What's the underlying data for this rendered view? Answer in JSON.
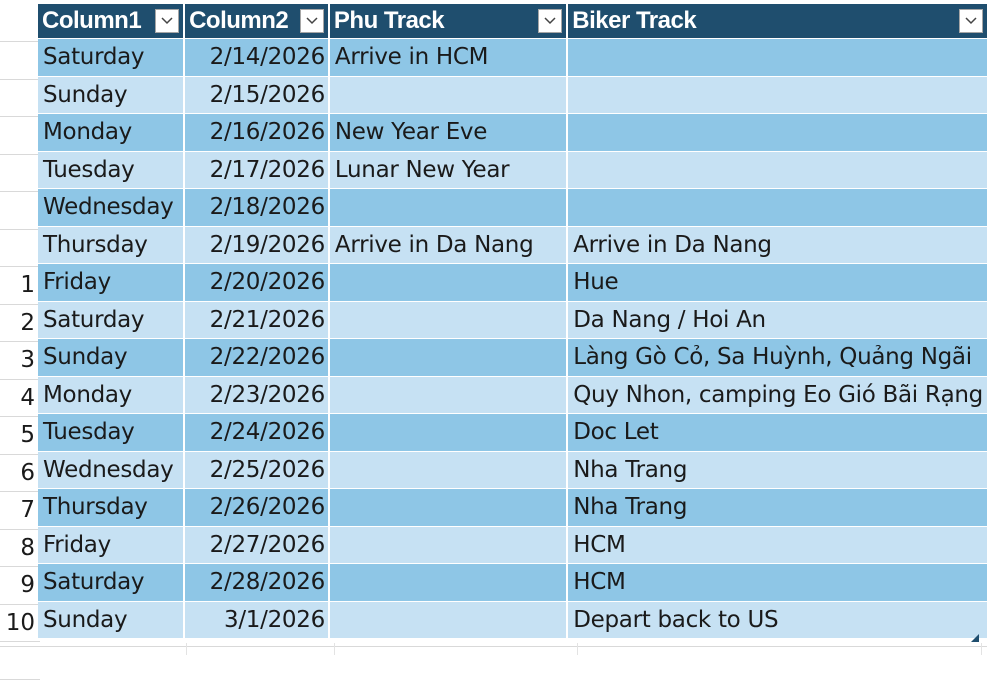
{
  "headers": [
    "Column1",
    "Column2",
    "Phu Track",
    "Biker Track"
  ],
  "rows": [
    {
      "num": "",
      "day": "Saturday",
      "date": "2/14/2026",
      "phu": "Arrive in HCM",
      "biker": ""
    },
    {
      "num": "",
      "day": "Sunday",
      "date": "2/15/2026",
      "phu": "",
      "biker": ""
    },
    {
      "num": "",
      "day": "Monday",
      "date": "2/16/2026",
      "phu": "New Year Eve",
      "biker": ""
    },
    {
      "num": "",
      "day": "Tuesday",
      "date": "2/17/2026",
      "phu": "Lunar New Year",
      "biker": ""
    },
    {
      "num": "",
      "day": "Wednesday",
      "date": "2/18/2026",
      "phu": "",
      "biker": ""
    },
    {
      "num": "",
      "day": "Thursday",
      "date": "2/19/2026",
      "phu": "Arrive in Da Nang",
      "biker": "Arrive in Da Nang"
    },
    {
      "num": "1",
      "day": "Friday",
      "date": "2/20/2026",
      "phu": "",
      "biker": "Hue"
    },
    {
      "num": "2",
      "day": "Saturday",
      "date": "2/21/2026",
      "phu": "",
      "biker": "Da Nang / Hoi An"
    },
    {
      "num": "3",
      "day": "Sunday",
      "date": "2/22/2026",
      "phu": "",
      "biker": "Làng Gò Cỏ, Sa Huỳnh, Quảng Ngãi"
    },
    {
      "num": "4",
      "day": "Monday",
      "date": "2/23/2026",
      "phu": "",
      "biker": "Quy Nhon, camping Eo Gió Bãi Rạng"
    },
    {
      "num": "5",
      "day": "Tuesday",
      "date": "2/24/2026",
      "phu": "",
      "biker": "Doc Let"
    },
    {
      "num": "6",
      "day": "Wednesday",
      "date": "2/25/2026",
      "phu": "",
      "biker": "Nha Trang"
    },
    {
      "num": "7",
      "day": "Thursday",
      "date": "2/26/2026",
      "phu": "",
      "biker": "Nha Trang"
    },
    {
      "num": "8",
      "day": "Friday",
      "date": "2/27/2026",
      "phu": "",
      "biker": "HCM"
    },
    {
      "num": "9",
      "day": "Saturday",
      "date": "2/28/2026",
      "phu": "",
      "biker": "HCM"
    },
    {
      "num": "10",
      "day": "Sunday",
      "date": "3/1/2026",
      "phu": "",
      "biker": "Depart back to US"
    }
  ],
  "colors": {
    "header": "#1f4e6e",
    "row_dark": "#8ec6e6",
    "row_light": "#c6e1f3"
  },
  "icons": {
    "filter": "chevron-down-icon"
  }
}
